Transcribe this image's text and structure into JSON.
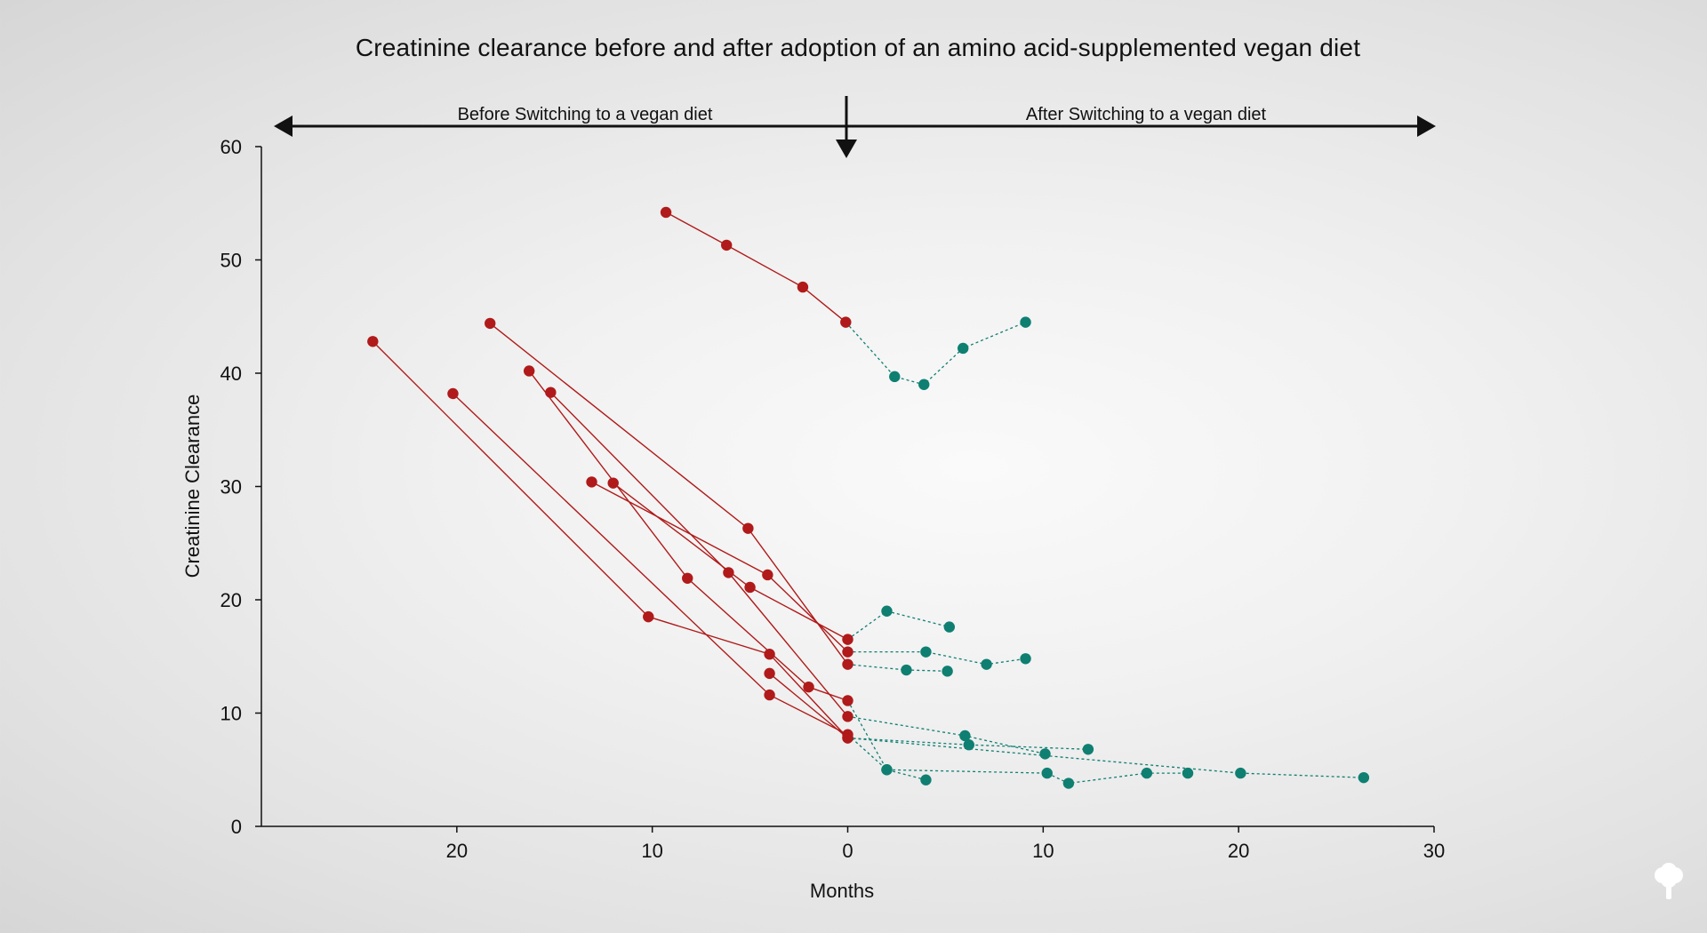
{
  "chart_data": {
    "type": "line",
    "title": "Creatinine clearance before and after adoption of an amino acid-supplemented vegan diet",
    "xlabel": "Months",
    "ylabel": "Creatinine Clearance",
    "xlim": [
      -30,
      30
    ],
    "ylim": [
      0,
      60
    ],
    "x_ticks": [
      -20,
      -10,
      0,
      10,
      20,
      30
    ],
    "x_tick_labels": [
      "20",
      "10",
      "0",
      "10",
      "20",
      "30"
    ],
    "y_ticks": [
      0,
      10,
      20,
      30,
      40,
      50,
      60
    ],
    "y_tick_labels": [
      "0",
      "10",
      "20",
      "30",
      "40",
      "50",
      "60"
    ],
    "grid": false,
    "annotations": {
      "before_label": "Before Switching to a vegan diet",
      "after_label": "After Switching to a vegan diet",
      "switch_marker_x": 0
    },
    "colors": {
      "before": "#b01a1a",
      "after": "#0f7f72",
      "axis": "#111111"
    },
    "series": [
      {
        "before": [
          [
            -9.3,
            54.2
          ],
          [
            -6.2,
            51.3
          ],
          [
            -2.3,
            47.6
          ],
          [
            -0.1,
            44.5
          ]
        ],
        "after": [
          [
            -0.1,
            44.5
          ],
          [
            2.4,
            39.7
          ],
          [
            3.9,
            39.0
          ],
          [
            5.9,
            42.2
          ],
          [
            9.1,
            44.5
          ]
        ]
      },
      {
        "before": [
          [
            -24.3,
            42.8
          ],
          [
            -10.2,
            18.5
          ],
          [
            -4.0,
            15.2
          ],
          [
            0.0,
            7.8
          ]
        ],
        "after": [
          [
            0.0,
            7.8
          ],
          [
            6.2,
            7.2
          ],
          [
            12.3,
            6.8
          ]
        ]
      },
      {
        "before": [
          [
            -20.2,
            38.2
          ],
          [
            -4.0,
            11.6
          ],
          [
            0.0,
            8.1
          ]
        ],
        "after": [
          [
            0.0,
            8.1
          ],
          [
            2.0,
            5.0
          ],
          [
            4.0,
            4.1
          ]
        ]
      },
      {
        "before": [
          [
            -18.3,
            44.4
          ],
          [
            -5.1,
            26.3
          ],
          [
            0.0,
            14.3
          ]
        ],
        "after": [
          [
            0.0,
            14.3
          ],
          [
            3.0,
            13.8
          ],
          [
            5.1,
            13.7
          ]
        ]
      },
      {
        "before": [
          [
            -16.3,
            40.2
          ],
          [
            -8.2,
            21.9
          ],
          [
            -2.0,
            12.3
          ],
          [
            0.0,
            11.1
          ]
        ],
        "after": [
          [
            0.0,
            11.1
          ],
          [
            2.0,
            5.0
          ],
          [
            10.2,
            4.7
          ],
          [
            11.3,
            3.8
          ],
          [
            15.3,
            4.7
          ],
          [
            17.4,
            4.7
          ]
        ]
      },
      {
        "before": [
          [
            -15.2,
            38.3
          ],
          [
            -6.1,
            22.4
          ],
          [
            0.0,
            9.7
          ]
        ],
        "after": [
          [
            0.0,
            9.7
          ],
          [
            6.0,
            8.0
          ],
          [
            10.1,
            6.4
          ]
        ]
      },
      {
        "before": [
          [
            -13.1,
            30.4
          ],
          [
            -4.1,
            22.2
          ],
          [
            0.0,
            15.4
          ]
        ],
        "after": [
          [
            0.0,
            15.4
          ],
          [
            4.0,
            15.4
          ],
          [
            7.1,
            14.3
          ],
          [
            9.1,
            14.8
          ]
        ]
      },
      {
        "before": [
          [
            -12.0,
            30.3
          ],
          [
            -5.0,
            21.1
          ],
          [
            0.0,
            16.5
          ]
        ],
        "after": [
          [
            0.0,
            16.5
          ],
          [
            2.0,
            19.0
          ],
          [
            5.2,
            17.6
          ]
        ]
      },
      {
        "before": [
          [
            -4.0,
            13.5
          ],
          [
            0.0,
            7.8
          ]
        ],
        "after": [
          [
            0.0,
            7.8
          ],
          [
            20.1,
            4.7
          ],
          [
            26.4,
            4.3
          ]
        ]
      }
    ]
  }
}
